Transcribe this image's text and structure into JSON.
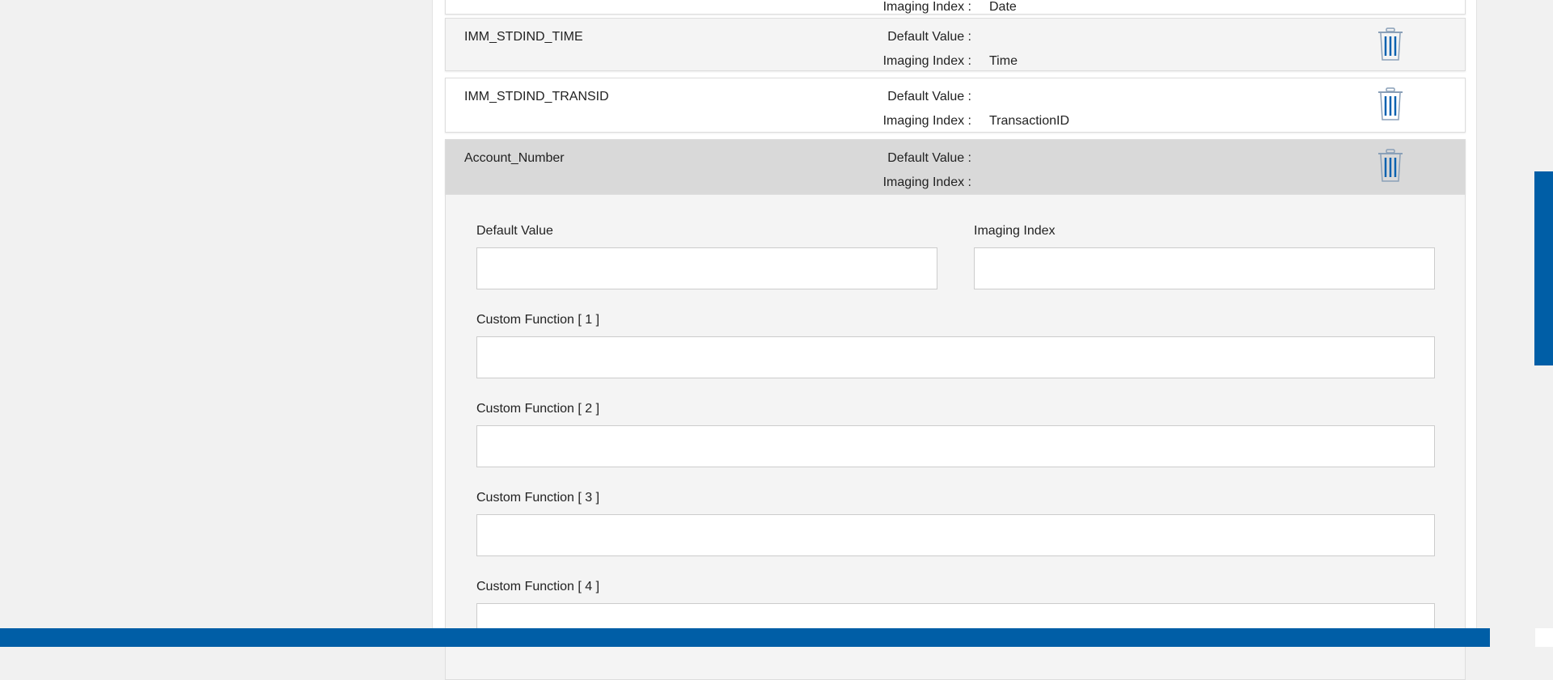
{
  "partial_row": {
    "imaging_label": "Imaging Index :",
    "imaging_value": "Date"
  },
  "rows": [
    {
      "name": "IMM_STDIND_TIME",
      "default_label": "Default Value :",
      "default_value": "",
      "imaging_label": "Imaging Index :",
      "imaging_value": "Time"
    },
    {
      "name": "IMM_STDIND_TRANSID",
      "default_label": "Default Value :",
      "default_value": "",
      "imaging_label": "Imaging Index :",
      "imaging_value": "TransactionID"
    },
    {
      "name": "Account_Number",
      "default_label": "Default Value :",
      "default_value": "",
      "imaging_label": "Imaging Index :",
      "imaging_value": ""
    }
  ],
  "form": {
    "default_value_label": "Default Value",
    "default_value": "",
    "imaging_index_label": "Imaging Index",
    "imaging_index": "",
    "custom_functions": [
      {
        "label": "Custom Function [ 1 ]",
        "value": ""
      },
      {
        "label": "Custom Function [ 2 ]",
        "value": ""
      },
      {
        "label": "Custom Function [ 3 ]",
        "value": ""
      },
      {
        "label": "Custom Function [ 4 ]",
        "value": ""
      }
    ]
  },
  "colors": {
    "accent": "#005ea6",
    "selected_row": "#d9d9d9",
    "row_alt": "#f4f4f4"
  },
  "icons": {
    "delete": "trash-icon"
  }
}
